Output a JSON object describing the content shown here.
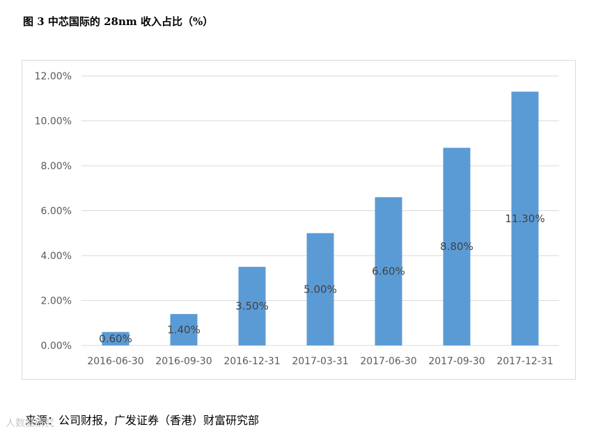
{
  "title": "图 3 中芯国际的 28nm 收入占比（%）",
  "source": "来源：公司财报，广发证券（香港）财富研究部",
  "watermark": "人数据研究",
  "colors": {
    "bar": "#5b9bd5",
    "grid": "#d9d9d9",
    "axis_text": "#595959",
    "label_text": "#404040"
  },
  "chart_data": {
    "type": "bar",
    "title": "图 3 中芯国际的 28nm 收入占比（%）",
    "categories": [
      "2016-06-30",
      "2016-09-30",
      "2016-12-31",
      "2017-03-31",
      "2017-06-30",
      "2017-09-30",
      "2017-12-31"
    ],
    "values": [
      0.6,
      1.4,
      3.5,
      5.0,
      6.6,
      8.8,
      11.3
    ],
    "data_labels": [
      "0.60%",
      "1.40%",
      "3.50%",
      "5.00%",
      "6.60%",
      "8.80%",
      "11.30%"
    ],
    "yticks": [
      0,
      2,
      4,
      6,
      8,
      10,
      12
    ],
    "ytick_labels": [
      "0.00%",
      "2.00%",
      "4.00%",
      "6.00%",
      "8.00%",
      "10.00%",
      "12.00%"
    ],
    "ylim": [
      0,
      12
    ],
    "xlabel": "",
    "ylabel": "",
    "grid": true,
    "legend": "none"
  }
}
